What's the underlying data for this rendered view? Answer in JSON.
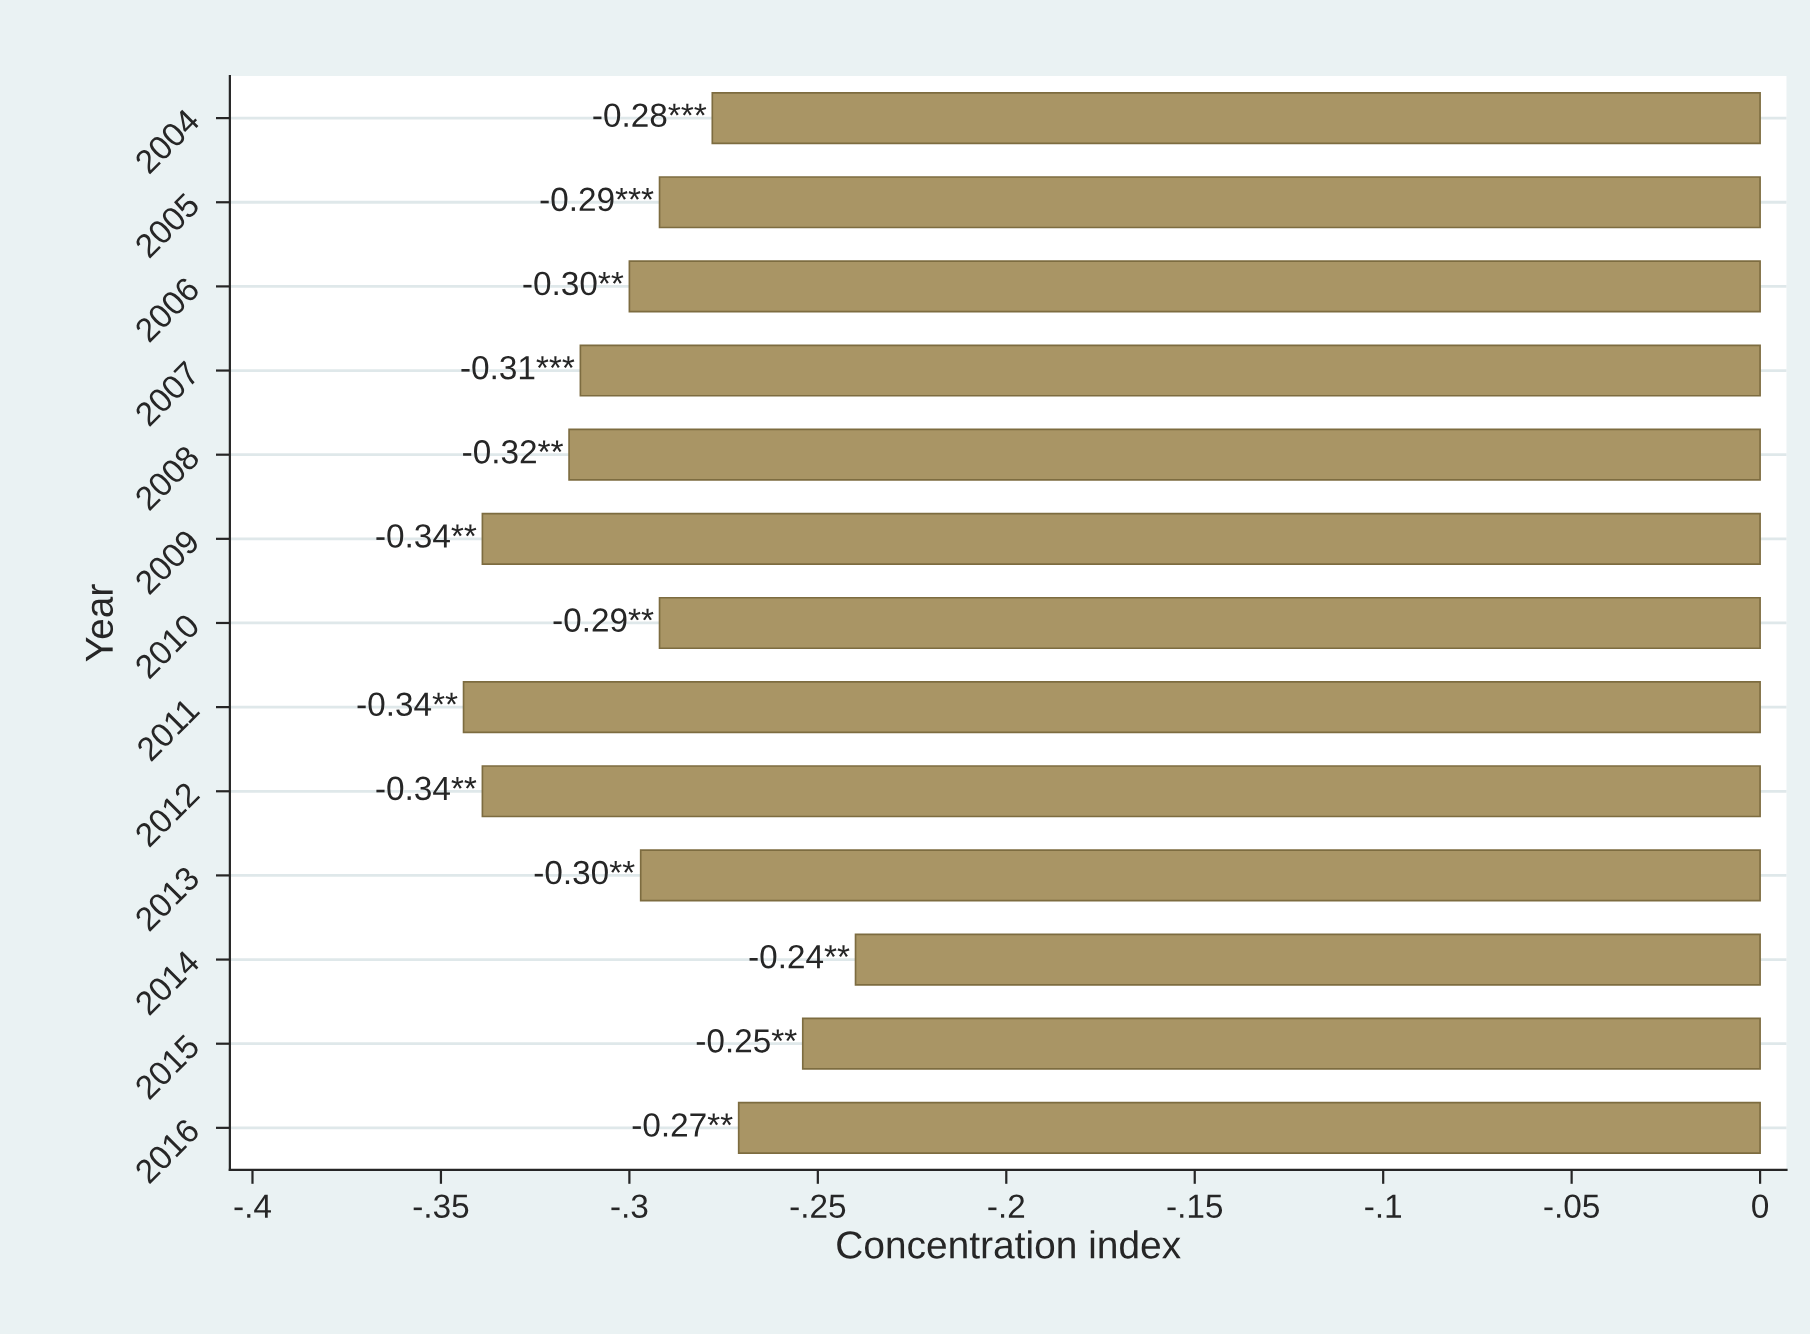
{
  "chart_data": {
    "type": "bar",
    "orientation": "horizontal",
    "xlabel": "Concentration index",
    "ylabel": "Year",
    "categories": [
      "2004",
      "2005",
      "2006",
      "2007",
      "2008",
      "2009",
      "2010",
      "2011",
      "2012",
      "2013",
      "2014",
      "2015",
      "2016"
    ],
    "values": [
      -0.278,
      -0.292,
      -0.3,
      -0.313,
      -0.316,
      -0.339,
      -0.292,
      -0.344,
      -0.339,
      -0.297,
      -0.24,
      -0.254,
      -0.271
    ],
    "value_labels": [
      "-0.28***",
      "-0.29***",
      "-0.30**",
      "-0.31***",
      "-0.32**",
      "-0.34**",
      "-0.29**",
      "-0.34**",
      "-0.34**",
      "-0.30**",
      "-0.24**",
      "-0.25**",
      "-0.27**"
    ],
    "color": "#a99565",
    "xlim": [
      -0.406,
      0.007
    ],
    "xticks": [
      {
        "value": -0.4,
        "label": "-.4"
      },
      {
        "value": -0.35,
        "label": "-.35"
      },
      {
        "value": -0.3,
        "label": "-.3"
      },
      {
        "value": -0.25,
        "label": "-.25"
      },
      {
        "value": -0.2,
        "label": "-.2"
      },
      {
        "value": -0.15,
        "label": "-.15"
      },
      {
        "value": -0.1,
        "label": "-.1"
      },
      {
        "value": -0.05,
        "label": "-.05"
      },
      0
    ],
    "grid": "y"
  }
}
